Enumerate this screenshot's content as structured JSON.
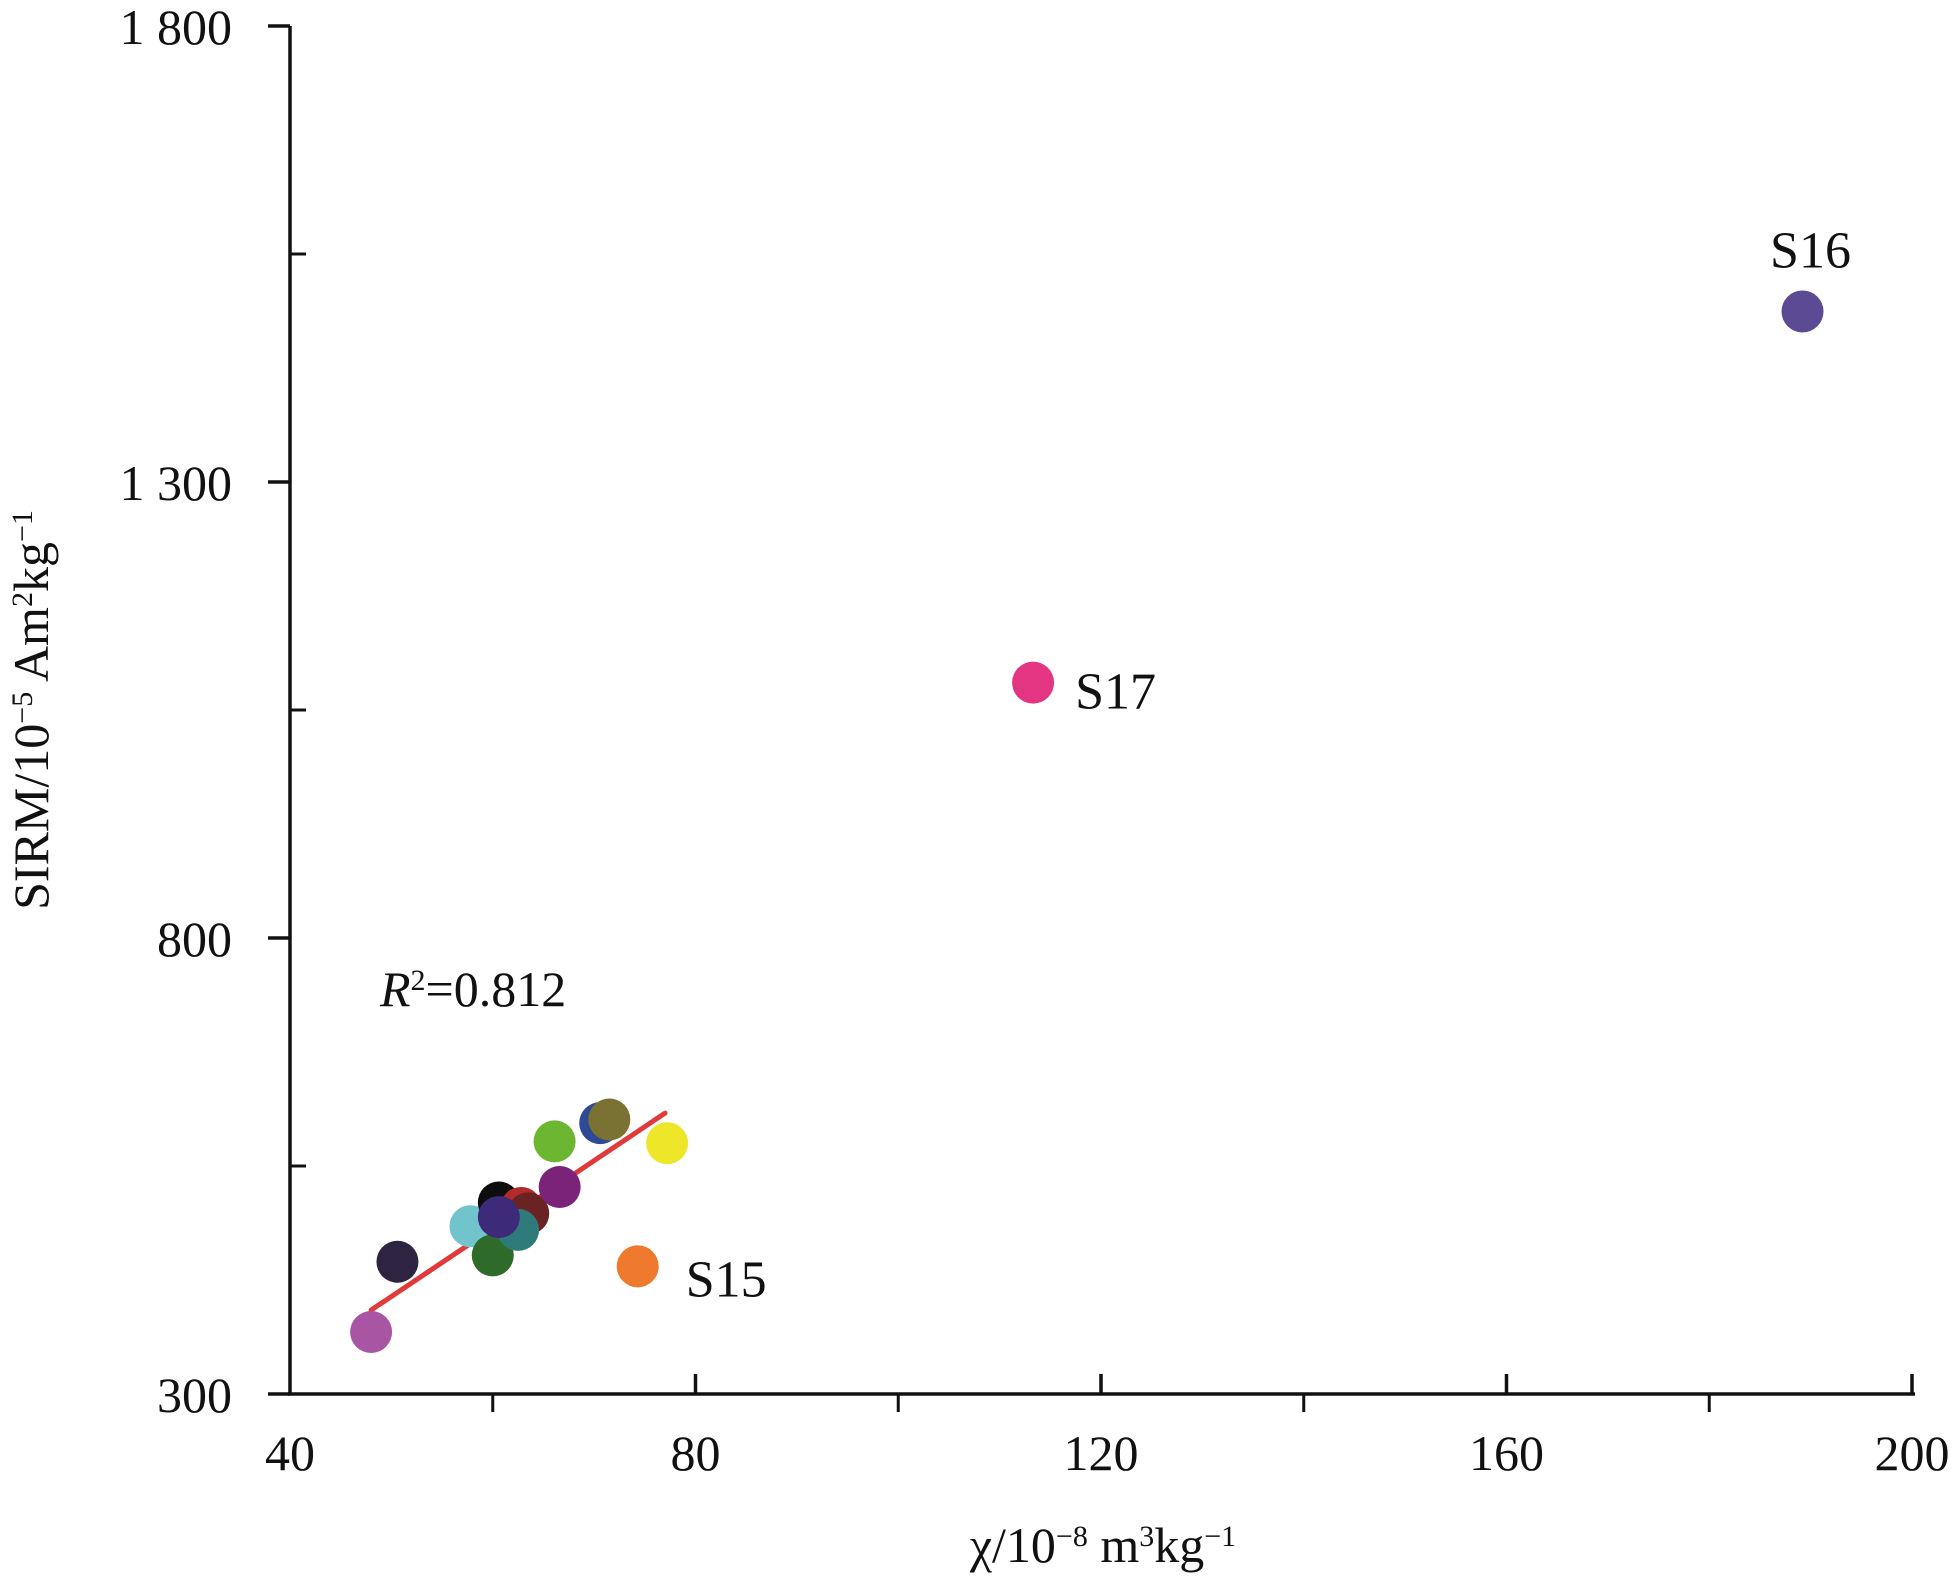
{
  "chart_data": {
    "type": "scatter",
    "title": "",
    "xlabel": {
      "base": "χ/10",
      "exp1": "−8",
      "mid": " m",
      "exp2": "3",
      "tail": "kg",
      "exp3": "−1"
    },
    "ylabel": {
      "base": "SIRM/10",
      "exp1": "−5",
      "mid": " Am",
      "exp2": "2",
      "tail": "kg",
      "exp3": "−1"
    },
    "xlim": [
      40,
      200
    ],
    "ylim": [
      300,
      1800
    ],
    "x_ticks": [
      40,
      80,
      120,
      160,
      200
    ],
    "x_tick_labels": [
      "40",
      "80",
      "120",
      "160",
      "200"
    ],
    "x_minor_ticks": [
      60,
      100,
      140,
      180
    ],
    "y_ticks": [
      300,
      800,
      1300,
      1800
    ],
    "y_tick_labels": [
      "300",
      "800",
      "1 300",
      "1 800"
    ],
    "y_minor_ticks": [
      550,
      1050,
      1550
    ],
    "grid": false,
    "points": [
      {
        "x": 48.0,
        "y": 368,
        "color": "#a855a3",
        "label": ""
      },
      {
        "x": 50.6,
        "y": 445,
        "color": "#2e2340",
        "label": ""
      },
      {
        "x": 57.8,
        "y": 484,
        "color": "#72c4cc",
        "label": ""
      },
      {
        "x": 60.0,
        "y": 452,
        "color": "#2e6b2a",
        "label": ""
      },
      {
        "x": 60.6,
        "y": 510,
        "color": "#0d0d0d",
        "label": ""
      },
      {
        "x": 62.8,
        "y": 504,
        "color": "#b22a2a",
        "label": ""
      },
      {
        "x": 63.5,
        "y": 498,
        "color": "#6a2222",
        "label": ""
      },
      {
        "x": 62.5,
        "y": 480,
        "color": "#2f7a7a",
        "label": ""
      },
      {
        "x": 60.6,
        "y": 494,
        "color": "#3d2a78",
        "label": ""
      },
      {
        "x": 66.6,
        "y": 527,
        "color": "#7a2378",
        "label": ""
      },
      {
        "x": 66.1,
        "y": 577,
        "color": "#6db632",
        "label": ""
      },
      {
        "x": 70.6,
        "y": 597,
        "color": "#2e4a94",
        "label": ""
      },
      {
        "x": 71.5,
        "y": 601,
        "color": "#7a7232",
        "label": ""
      },
      {
        "x": 77.2,
        "y": 575,
        "color": "#ede629",
        "label": ""
      },
      {
        "x": 74.3,
        "y": 440,
        "color": "#ef7a2e",
        "label": "S15"
      },
      {
        "x": 113.3,
        "y": 1080,
        "color": "#e33582",
        "label": "S17"
      },
      {
        "x": 189.2,
        "y": 1487,
        "color": "#5c4a94",
        "label": "S16"
      }
    ],
    "trendline": {
      "x": [
        48.0,
        77.0
      ],
      "y": [
        392,
        608
      ],
      "color": "#e03a3a"
    },
    "annotation": {
      "symbol": "R",
      "exp": "2",
      "text": "=0.812"
    }
  }
}
